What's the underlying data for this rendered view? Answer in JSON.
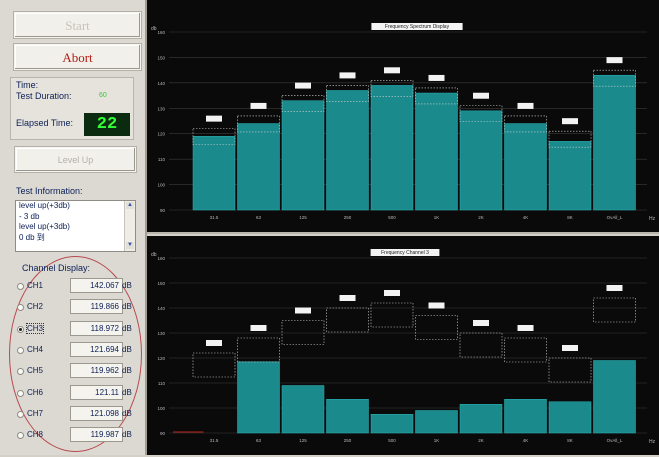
{
  "controls": {
    "start_label": "Start",
    "abort_label": "Abort",
    "level_up_label": "Level Up"
  },
  "time": {
    "section_label": "Time:",
    "duration_label": "Test Duration:",
    "duration_value": "60",
    "elapsed_label": "Elapsed Time:",
    "elapsed_value": "22"
  },
  "test_info": {
    "title": "Test Information:",
    "lines": [
      "level up(+3db)",
      "- 3 db",
      "level up(+3db)",
      "0 db 到"
    ]
  },
  "channels": {
    "title": "Channel Display:",
    "unit": "dB",
    "selected_index": 2,
    "items": [
      {
        "name": "CH1",
        "value": "142.067"
      },
      {
        "name": "CH2",
        "value": "119.866"
      },
      {
        "name": "CH3",
        "value": "118.972"
      },
      {
        "name": "CH4",
        "value": "121.694"
      },
      {
        "name": "CH5",
        "value": "119.962"
      },
      {
        "name": "CH6",
        "value": "121.11"
      },
      {
        "name": "CH7",
        "value": "121.098"
      },
      {
        "name": "CH8",
        "value": "119.987"
      }
    ]
  },
  "colors": {
    "bar": "#1a8a8c",
    "bar_edge": "#2bb2b4",
    "grid": "#3a3a3a",
    "axis_text": "#b9b9b9",
    "target_box": "#cfcfcf",
    "label_box_bg": "#f3f3f3",
    "red_line": "#c0241e"
  },
  "chart_data": [
    {
      "type": "bar",
      "title": "Frequency Spectrum Display",
      "ylabel": "db",
      "xlabel": "Hz",
      "ylim": [
        90,
        160
      ],
      "yticks": [
        90,
        100,
        110,
        120,
        130,
        140,
        150,
        160
      ],
      "categories": [
        "31.5",
        "63",
        "125",
        "250",
        "500",
        "1K",
        "2K",
        "4K",
        "8K",
        "OvAll_L"
      ],
      "values": [
        119,
        124,
        133,
        137,
        139,
        136,
        129,
        124,
        117,
        143
      ],
      "target": [
        122,
        127,
        135,
        139,
        141,
        138,
        131,
        127,
        121,
        145
      ],
      "label_tags": [
        "",
        "",
        "",
        "",
        "",
        "",
        "",
        "",
        "",
        ""
      ]
    },
    {
      "type": "bar",
      "title": "Frequency Channel 3",
      "ylabel": "db",
      "xlabel": "Hz",
      "ylim": [
        90,
        160
      ],
      "yticks": [
        90,
        100,
        110,
        120,
        130,
        140,
        150,
        160
      ],
      "categories": [
        "31.5",
        "63",
        "125",
        "250",
        "500",
        "1K",
        "2K",
        "4K",
        "8K",
        "OvAll_L"
      ],
      "values": [
        90.5,
        118.5,
        109,
        103.5,
        97.5,
        99,
        101.5,
        103.5,
        102.5,
        119
      ],
      "target": [
        122,
        128,
        135,
        140,
        142,
        137,
        130,
        128,
        120,
        144
      ],
      "label_tags": [
        "",
        "",
        "",
        "",
        "",
        "",
        "",
        "",
        "",
        ""
      ]
    }
  ]
}
